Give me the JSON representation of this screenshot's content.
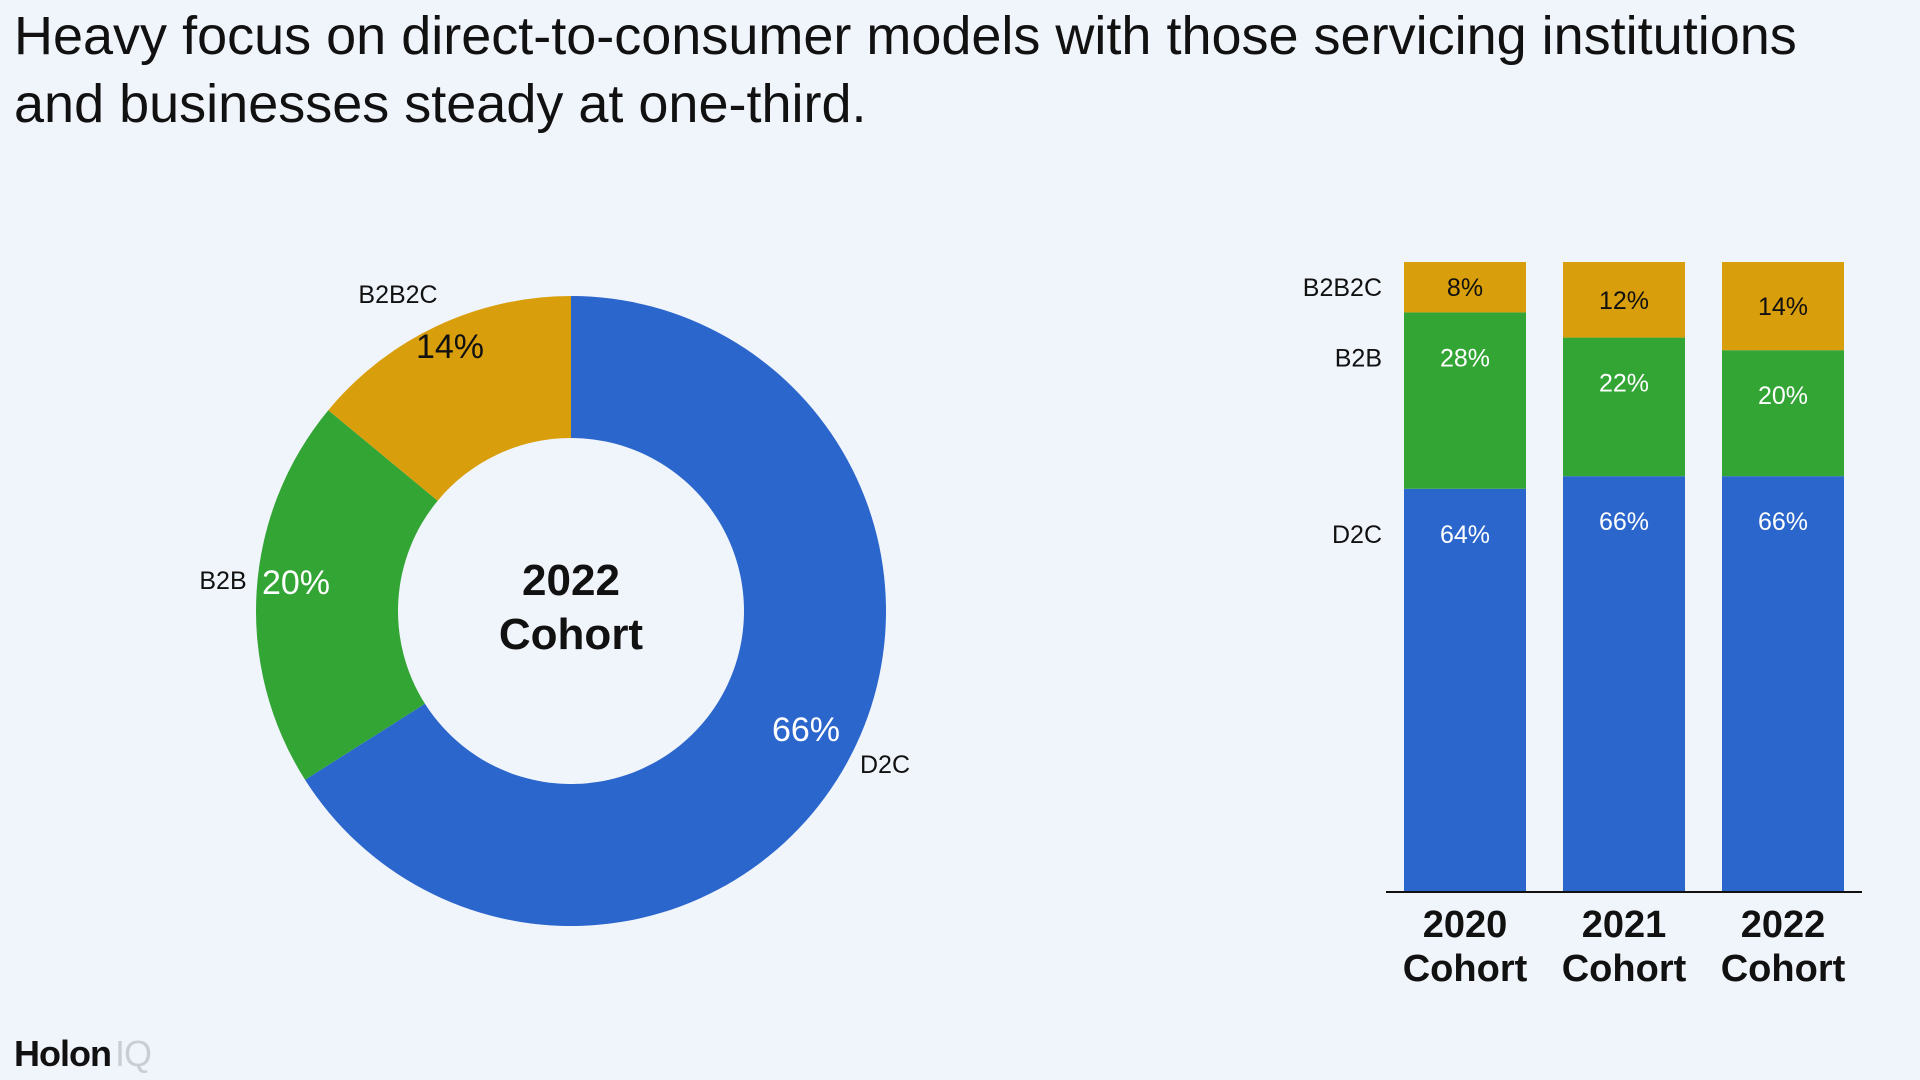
{
  "headline": "Heavy focus on direct-to-consumer models with those servicing institutions and businesses steady at one-third.",
  "logo": {
    "brand": "Holon",
    "suffix": "IQ"
  },
  "colors": {
    "D2C": "#2b66cc",
    "B2B": "#33a535",
    "B2B2C": "#d99e0b"
  },
  "chart_data": [
    {
      "type": "pie",
      "variant": "donut",
      "center_label": [
        "2022",
        "Cohort"
      ],
      "slices": [
        {
          "label": "D2C",
          "value": 66,
          "value_label": "66%"
        },
        {
          "label": "B2B",
          "value": 20,
          "value_label": "20%"
        },
        {
          "label": "B2B2C",
          "value": 14,
          "value_label": "14%"
        }
      ]
    },
    {
      "type": "bar",
      "stacked": true,
      "normalized": true,
      "categories": [
        [
          "2020",
          "Cohort"
        ],
        [
          "2021",
          "Cohort"
        ],
        [
          "2022",
          "Cohort"
        ]
      ],
      "series": [
        {
          "name": "D2C",
          "values": [
            64,
            66,
            66
          ],
          "labels": [
            "64%",
            "66%",
            "66%"
          ]
        },
        {
          "name": "B2B",
          "values": [
            28,
            22,
            20
          ],
          "labels": [
            "28%",
            "22%",
            "20%"
          ]
        },
        {
          "name": "B2B2C",
          "values": [
            8,
            12,
            14
          ],
          "labels": [
            "8%",
            "12%",
            "14%"
          ]
        }
      ],
      "ylim": [
        0,
        100
      ],
      "grid": false
    }
  ]
}
